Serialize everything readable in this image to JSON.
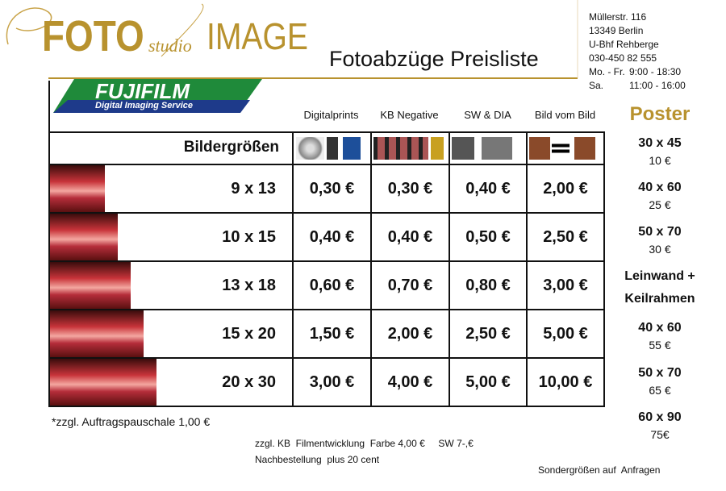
{
  "header": {
    "logo": {
      "foto": "FOTO",
      "studio": "studio",
      "image": "IMAGE"
    },
    "title": "Fotoabzüge Preisliste",
    "address": [
      "Müllerstr. 116",
      "13349 Berlin",
      "U-Bhf Rehberge",
      "030-450 82 555"
    ],
    "hours": [
      {
        "days": "Mo. - Fr.",
        "time": "9:00 - 18:30"
      },
      {
        "days": "Sa.",
        "time": "11:00 - 16:00"
      }
    ]
  },
  "brand": {
    "name": "FUJIFILM",
    "tagline": "Digital Imaging Service"
  },
  "table": {
    "size_header": "Bildergrößen",
    "columns": [
      "Digitalprints",
      "KB Negative",
      "SW & DIA",
      "Bild vom Bild"
    ],
    "rows": [
      [
        "9 x 13",
        "0,30 €",
        "0,30 €",
        "0,40 €",
        "2,00 €"
      ],
      [
        "10 x 15",
        "0,40 €",
        "0,40 €",
        "0,50 €",
        "2,50 €"
      ],
      [
        "13 x 18",
        "0,60 €",
        "0,70 €",
        "0,80 €",
        "3,00 €"
      ],
      [
        "15 x 20",
        "1,50 €",
        "2,00 €",
        "2,50 €",
        "5,00 €"
      ],
      [
        "20 x 30",
        "3,00 €",
        "4,00 €",
        "5,00 €",
        "10,00 €"
      ]
    ]
  },
  "poster": {
    "title": "Poster",
    "prints": [
      {
        "size": "30 x 45",
        "price": "10 €"
      },
      {
        "size": "40 x 60",
        "price": "25 €"
      },
      {
        "size": "50 x 70",
        "price": "30 €"
      }
    ],
    "canvas_title": [
      "Leinwand +",
      "Keilrahmen"
    ],
    "canvas": [
      {
        "size": "40 x 60",
        "price": "55 €"
      },
      {
        "size": "50 x 70",
        "price": "65 €"
      },
      {
        "size": "60 x 90",
        "price": "75€"
      }
    ]
  },
  "footer": {
    "fee": "*zzgl. Auftragspauschale 1,00 €",
    "film": "zzgl. KB  Filmentwicklung  Farbe 4,00 €     SW 7-,€",
    "reorder": "Nachbestellung  plus 20 cent",
    "special": "Sondergrößen auf  Anfragen"
  }
}
